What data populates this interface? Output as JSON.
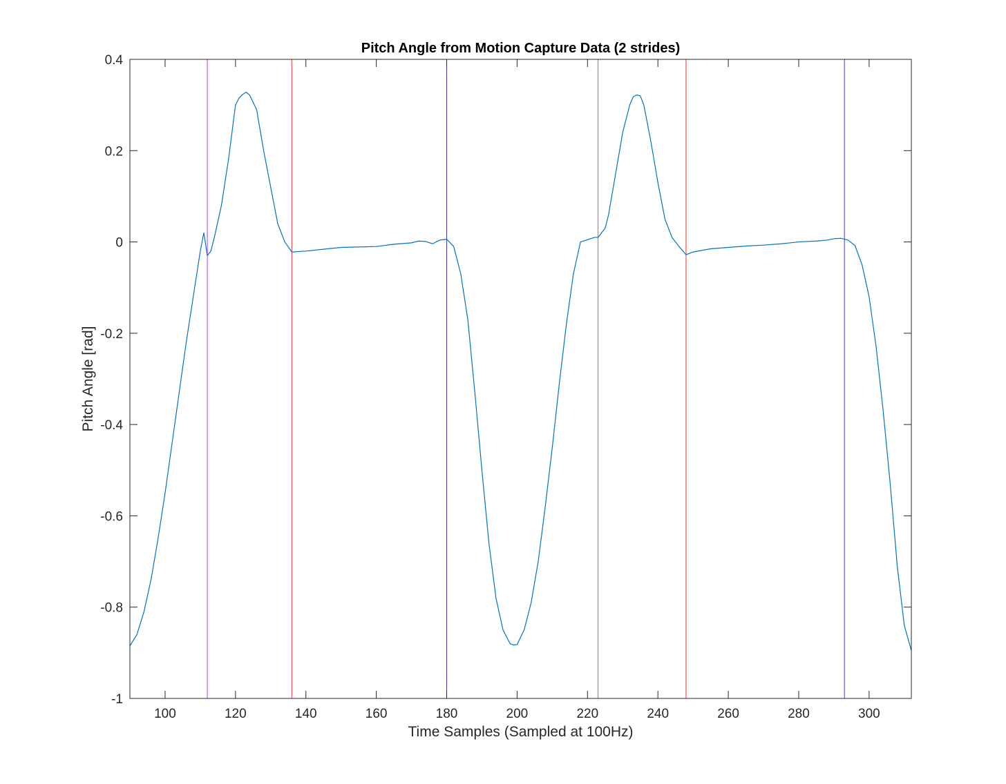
{
  "chart_data": {
    "type": "line",
    "title": "Pitch Angle from Motion Capture Data (2 strides)",
    "xlabel": "Time Samples (Sampled at 100Hz)",
    "ylabel": "Pitch Angle [rad]",
    "xlim": [
      90,
      312
    ],
    "ylim": [
      -1,
      0.4
    ],
    "xticks": [
      100,
      120,
      140,
      160,
      180,
      200,
      220,
      240,
      260,
      280,
      300
    ],
    "yticks": [
      -1,
      -0.8,
      -0.6,
      -0.4,
      -0.2,
      0,
      0.2,
      0.4
    ],
    "xtick_labels": [
      "100",
      "120",
      "140",
      "160",
      "180",
      "200",
      "220",
      "240",
      "260",
      "280",
      "300"
    ],
    "ytick_labels": [
      "-1",
      "-0.8",
      "-0.6",
      "-0.4",
      "-0.2",
      "0",
      "0.2",
      "0.4"
    ],
    "grid": false,
    "series": [
      {
        "color": "#0072BD",
        "x": [
          90,
          92,
          94,
          96,
          98,
          100,
          102,
          104,
          106,
          108,
          110,
          111,
          112,
          113,
          114,
          116,
          118,
          120,
          121,
          122,
          123,
          124,
          126,
          128,
          130,
          132,
          134,
          136,
          140,
          145,
          150,
          155,
          160,
          165,
          170,
          172,
          174,
          176,
          178,
          180,
          182,
          184,
          186,
          188,
          190,
          192,
          194,
          196,
          198,
          199,
          200,
          202,
          204,
          206,
          208,
          210,
          212,
          214,
          216,
          218,
          220,
          222,
          223,
          224,
          225,
          226,
          228,
          230,
          232,
          233,
          234,
          235,
          236,
          238,
          240,
          242,
          244,
          246,
          248,
          250,
          255,
          260,
          265,
          270,
          275,
          280,
          285,
          288,
          290,
          292,
          294,
          296,
          298,
          300,
          302,
          304,
          306,
          308,
          310,
          312
        ],
        "y": [
          -0.885,
          -0.86,
          -0.81,
          -0.74,
          -0.65,
          -0.55,
          -0.44,
          -0.33,
          -0.22,
          -0.12,
          -0.02,
          0.02,
          -0.03,
          -0.02,
          0.01,
          0.08,
          0.18,
          0.3,
          0.315,
          0.323,
          0.328,
          0.322,
          0.29,
          0.2,
          0.12,
          0.04,
          0.0,
          -0.022,
          -0.02,
          -0.016,
          -0.012,
          -0.011,
          -0.01,
          -0.005,
          -0.002,
          0.002,
          0.001,
          -0.004,
          0.004,
          0.006,
          -0.01,
          -0.07,
          -0.17,
          -0.33,
          -0.5,
          -0.66,
          -0.78,
          -0.85,
          -0.88,
          -0.883,
          -0.882,
          -0.85,
          -0.79,
          -0.7,
          -0.58,
          -0.45,
          -0.31,
          -0.18,
          -0.07,
          0.0,
          0.005,
          0.01,
          0.01,
          0.02,
          0.03,
          0.06,
          0.15,
          0.24,
          0.3,
          0.318,
          0.322,
          0.32,
          0.3,
          0.22,
          0.13,
          0.05,
          0.01,
          -0.01,
          -0.028,
          -0.022,
          -0.015,
          -0.012,
          -0.009,
          -0.007,
          -0.004,
          0.0,
          0.002,
          0.004,
          0.007,
          0.008,
          0.004,
          -0.008,
          -0.05,
          -0.12,
          -0.23,
          -0.37,
          -0.53,
          -0.71,
          -0.84,
          -0.895
        ]
      }
    ],
    "vertical_lines": [
      {
        "x": 112,
        "color": "#B23AEE"
      },
      {
        "x": 136,
        "color": "#E53935"
      },
      {
        "x": 180,
        "color": "#3F3FBF"
      },
      {
        "x": 223,
        "color": "#E040C8"
      },
      {
        "x": 248,
        "color": "#E53935"
      },
      {
        "x": 293,
        "color": "#3F3FBF"
      }
    ]
  }
}
